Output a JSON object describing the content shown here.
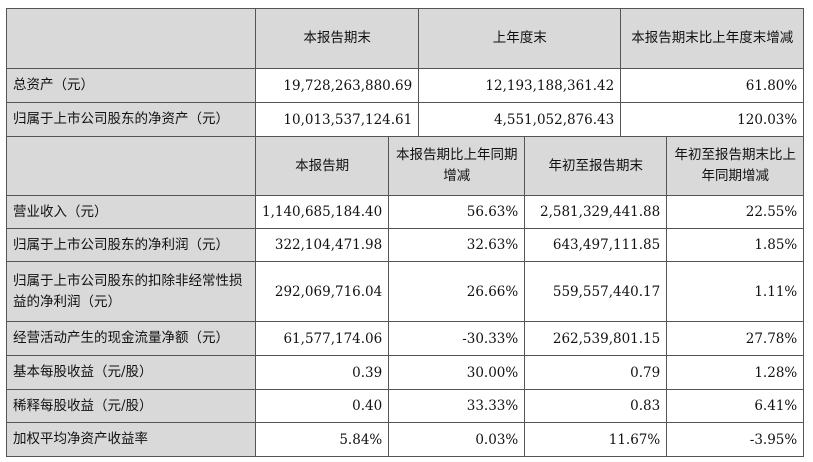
{
  "top_header": {
    "col1": "本报告期末",
    "col2": "上年度末",
    "col3": "本报告期末比上年度末增减"
  },
  "top_rows": [
    {
      "label": "总资产（元）",
      "current": "19,728,263,880.69",
      "prior": "12,193,188,361.42",
      "change": "61.80%"
    },
    {
      "label": "归属于上市公司股东的净资产（元）",
      "current": "10,013,537,124.61",
      "prior": "4,551,052,876.43",
      "change": "120.03%"
    }
  ],
  "bottom_header": {
    "col1": "本报告期",
    "col2": "本报告期比上年同期增减",
    "col3": "年初至报告期末",
    "col4": "年初至报告期末比上年同期增减"
  },
  "bottom_rows": [
    {
      "label": "营业收入（元）",
      "period": "1,140,685,184.40",
      "period_change": "56.63%",
      "ytd": "2,581,329,441.88",
      "ytd_change": "22.55%"
    },
    {
      "label": "归属于上市公司股东的净利润（元）",
      "period": "322,104,471.98",
      "period_change": "32.63%",
      "ytd": "643,497,111.85",
      "ytd_change": "1.85%"
    },
    {
      "label": "归属于上市公司股东的扣除非经常性损益的净利润（元）",
      "period": "292,069,716.04",
      "period_change": "26.66%",
      "ytd": "559,557,440.17",
      "ytd_change": "1.11%"
    },
    {
      "label": "经营活动产生的现金流量净额（元）",
      "period": "61,577,174.06",
      "period_change": "-30.33%",
      "ytd": "262,539,801.15",
      "ytd_change": "27.78%"
    },
    {
      "label": "基本每股收益（元/股）",
      "period": "0.39",
      "period_change": "30.00%",
      "ytd": "0.79",
      "ytd_change": "1.28%"
    },
    {
      "label": "稀释每股收益（元/股）",
      "period": "0.40",
      "period_change": "33.33%",
      "ytd": "0.83",
      "ytd_change": "6.41%"
    },
    {
      "label": "加权平均净资产收益率",
      "period": "5.84%",
      "period_change": "0.03%",
      "ytd": "11.67%",
      "ytd_change": "-3.95%"
    }
  ]
}
